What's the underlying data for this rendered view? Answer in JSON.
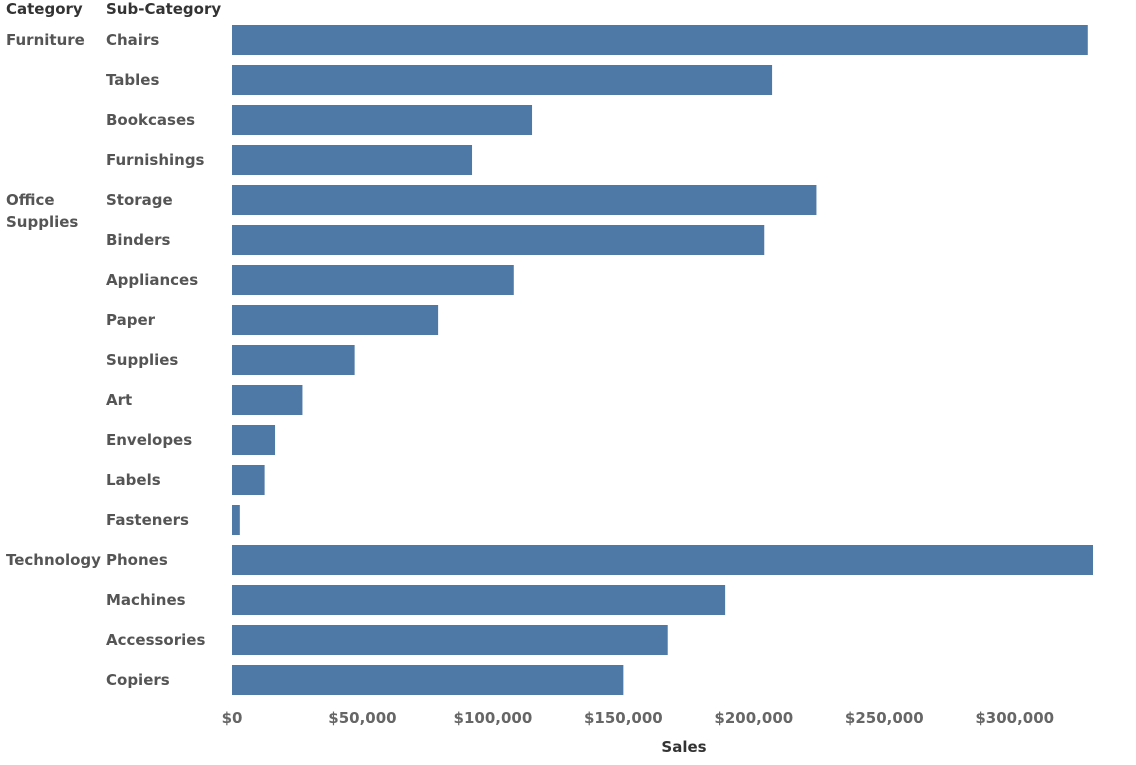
{
  "headers": {
    "category": "Category",
    "subcategory": "Sub-Category"
  },
  "colors": {
    "bar": "#4e79a7"
  },
  "chart_data": {
    "type": "bar",
    "orientation": "horizontal",
    "xlabel": "Sales",
    "xlim": [
      0,
      330000
    ],
    "x_ticks": [
      "$0",
      "$50,000",
      "$100,000",
      "$150,000",
      "$200,000",
      "$250,000",
      "$300,000"
    ],
    "x_tick_values": [
      0,
      50000,
      100000,
      150000,
      200000,
      250000,
      300000
    ],
    "grid": false,
    "groups": [
      {
        "category": "Furniture",
        "items": [
          {
            "label": "Chairs",
            "value": 328000
          },
          {
            "label": "Tables",
            "value": 207000
          },
          {
            "label": "Bookcases",
            "value": 115000
          },
          {
            "label": "Furnishings",
            "value": 92000
          }
        ]
      },
      {
        "category": "Office Supplies",
        "items": [
          {
            "label": "Storage",
            "value": 224000
          },
          {
            "label": "Binders",
            "value": 204000
          },
          {
            "label": "Appliances",
            "value": 108000
          },
          {
            "label": "Paper",
            "value": 79000
          },
          {
            "label": "Supplies",
            "value": 47000
          },
          {
            "label": "Art",
            "value": 27000
          },
          {
            "label": "Envelopes",
            "value": 16500
          },
          {
            "label": "Labels",
            "value": 12500
          },
          {
            "label": "Fasteners",
            "value": 3000
          }
        ]
      },
      {
        "category": "Technology",
        "items": [
          {
            "label": "Phones",
            "value": 330000
          },
          {
            "label": "Machines",
            "value": 189000
          },
          {
            "label": "Accessories",
            "value": 167000
          },
          {
            "label": "Copiers",
            "value": 150000
          }
        ]
      }
    ]
  }
}
